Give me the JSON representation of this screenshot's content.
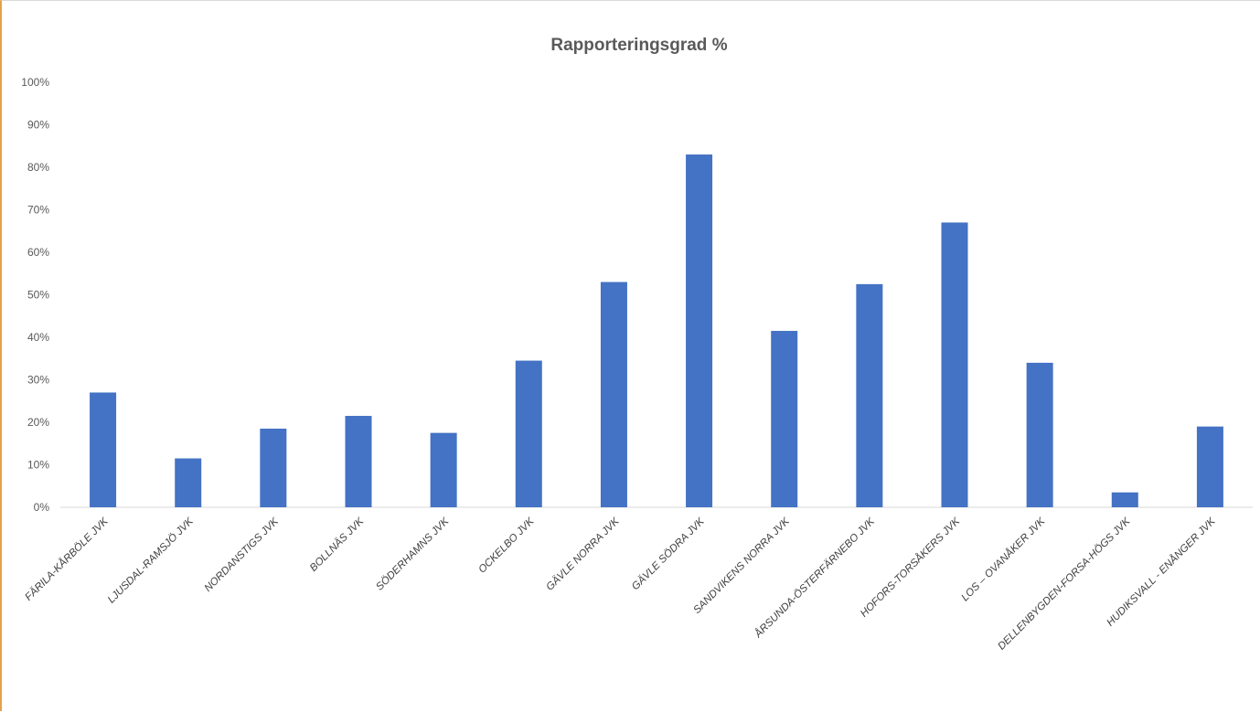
{
  "chart_data": {
    "type": "bar",
    "title": "Rapporteringsgrad  %",
    "xlabel": "",
    "ylabel": "",
    "ylim": [
      0,
      100
    ],
    "ytick_step": 10,
    "ytick_suffix": "%",
    "grid": false,
    "legend": "none",
    "bar_color": "#4472C4",
    "categories": [
      "FÄRILA-KÅRBÖLE JVK",
      "LJUSDAL-RAMSJÖ JVK",
      "NORDANSTIGS JVK",
      "BOLLNÄS JVK",
      "SÖDERHAMNS JVK",
      "OCKELBO JVK",
      "GÄVLE NORRA JVK",
      "GÄVLE SÖDRA JVK",
      "SANDVIKENS NORRA JVK",
      "ÅRSUNDA-ÖSTERFÄRNEBO JVK",
      "HOFORS-TORSÅKERS JVK",
      "LOS – OVANÅKER JVK",
      "DELLENBYGDEN-FORSA-HÖGS JVK",
      "HUDIKSVALL - ENÅNGER JVK"
    ],
    "values": [
      27,
      11.5,
      18.5,
      21.5,
      17.5,
      34.5,
      53,
      83,
      41.5,
      52.5,
      67,
      34,
      3.5,
      19
    ]
  }
}
